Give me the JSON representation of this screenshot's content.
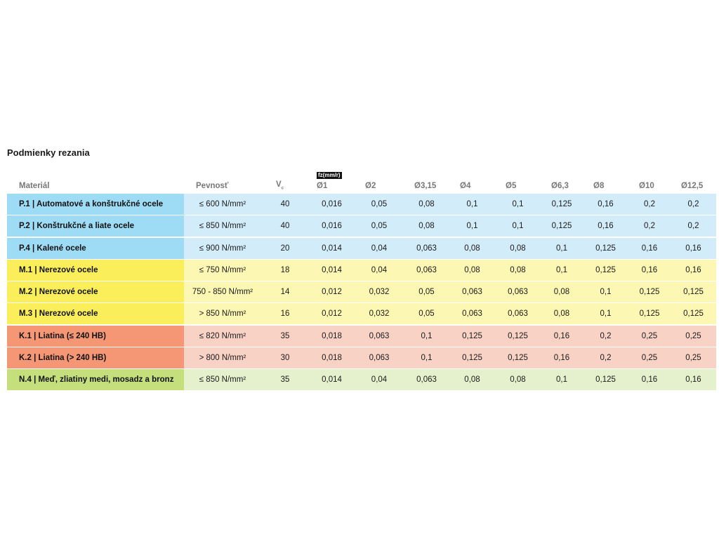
{
  "title": "Podmienky rezania",
  "header": {
    "material": "Materiál",
    "strength": "Pevnosť",
    "vc": "V",
    "vc_sub": "c",
    "feed_badge": "fz(mm/r)",
    "diameters": [
      "Ø1",
      "Ø2",
      "Ø3,15",
      "Ø4",
      "Ø5",
      "Ø6,3",
      "Ø8",
      "Ø10",
      "Ø12,5"
    ]
  },
  "group_colors": {
    "blue": "#9edcf6",
    "yellow": "#fbee5b",
    "red": "#f59675",
    "green": "#c4df7c"
  },
  "rows": [
    {
      "group": "blue",
      "material": "P.1 | Automatové a konštrukčné ocele",
      "strength": "≤ 600 N/mm²",
      "vc": "40",
      "values": [
        "0,016",
        "0,05",
        "0,08",
        "0,1",
        "0,1",
        "0,125",
        "0,16",
        "0,2",
        "0,2"
      ]
    },
    {
      "group": "blue",
      "material": "P.2 | Konštrukčné a liate ocele",
      "strength": "≤ 850 N/mm²",
      "vc": "40",
      "values": [
        "0,016",
        "0,05",
        "0,08",
        "0,1",
        "0,1",
        "0,125",
        "0,16",
        "0,2",
        "0,2"
      ]
    },
    {
      "group": "blue",
      "material": "P.4 | Kalené ocele",
      "strength": "≤ 900 N/mm²",
      "vc": "20",
      "values": [
        "0,014",
        "0,04",
        "0,063",
        "0,08",
        "0,08",
        "0,1",
        "0,125",
        "0,16",
        "0,16"
      ]
    },
    {
      "group": "yellow",
      "material": "M.1 | Nerezové ocele",
      "strength": "≤ 750 N/mm²",
      "vc": "18",
      "values": [
        "0,014",
        "0,04",
        "0,063",
        "0,08",
        "0,08",
        "0,1",
        "0,125",
        "0,16",
        "0,16"
      ]
    },
    {
      "group": "yellow",
      "material": "M.2 | Nerezové ocele",
      "strength": "750 - 850 N/mm²",
      "vc": "14",
      "values": [
        "0,012",
        "0,032",
        "0,05",
        "0,063",
        "0,063",
        "0,08",
        "0,1",
        "0,125",
        "0,125"
      ]
    },
    {
      "group": "yellow",
      "material": "M.3 | Nerezové ocele",
      "strength": "> 850 N/mm²",
      "vc": "16",
      "values": [
        "0,012",
        "0,032",
        "0,05",
        "0,063",
        "0,063",
        "0,08",
        "0,1",
        "0,125",
        "0,125"
      ]
    },
    {
      "group": "red",
      "material": "K.1 | Liatina (≤ 240 HB)",
      "strength": "≤ 820 N/mm²",
      "vc": "35",
      "values": [
        "0,018",
        "0,063",
        "0,1",
        "0,125",
        "0,125",
        "0,16",
        "0,2",
        "0,25",
        "0,25"
      ]
    },
    {
      "group": "red",
      "material": "K.2 | Liatina (> 240 HB)",
      "strength": "> 800 N/mm²",
      "vc": "30",
      "values": [
        "0,018",
        "0,063",
        "0,1",
        "0,125",
        "0,125",
        "0,16",
        "0,2",
        "0,25",
        "0,25"
      ]
    },
    {
      "group": "green",
      "material": "N.4 | Meď, zliatiny medi, mosadz a bronz",
      "strength": "≤ 850 N/mm²",
      "vc": "35",
      "values": [
        "0,014",
        "0,04",
        "0,063",
        "0,08",
        "0,08",
        "0,1",
        "0,125",
        "0,16",
        "0,16"
      ]
    }
  ]
}
